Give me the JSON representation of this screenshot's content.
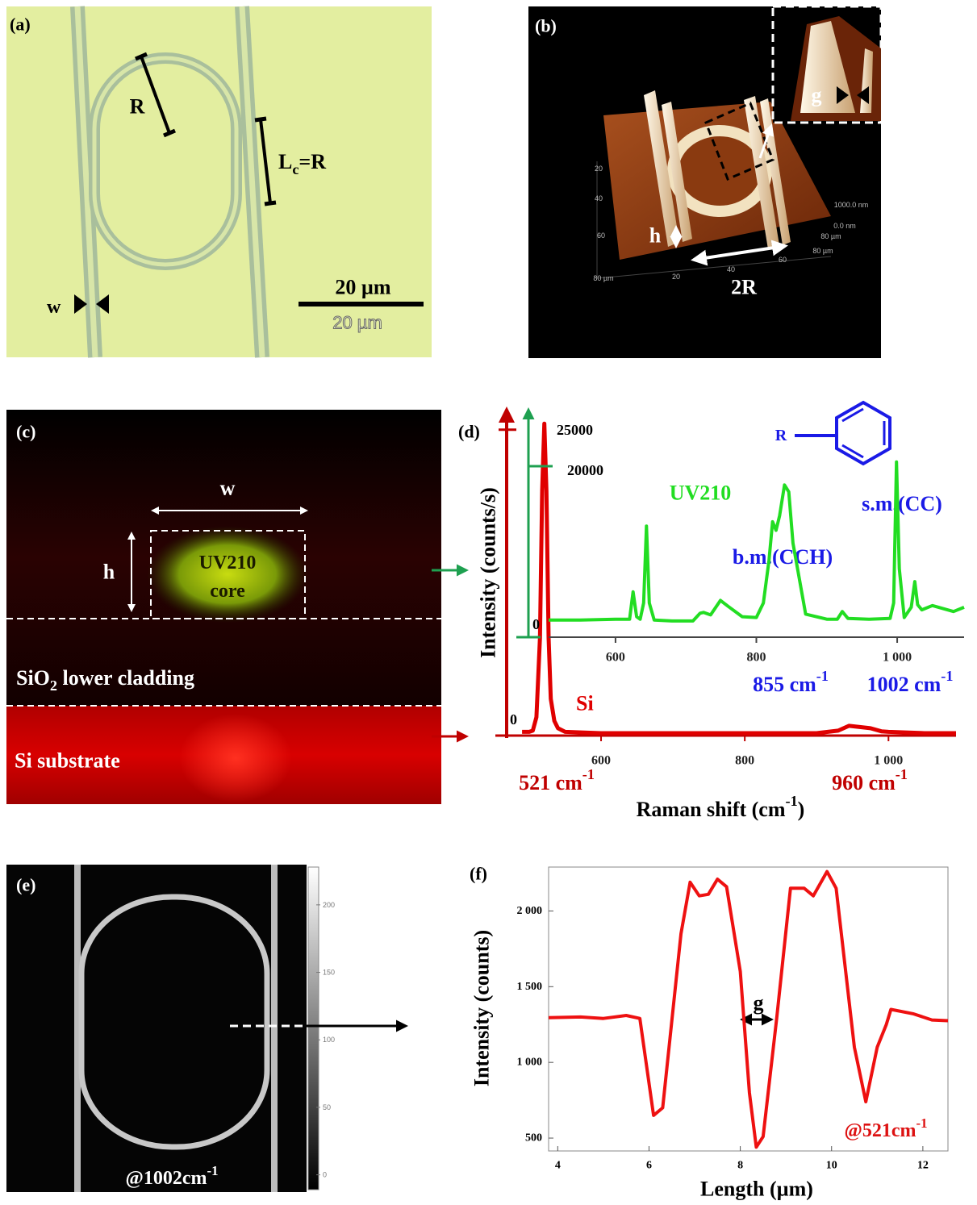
{
  "panels": {
    "a": {
      "label": "(a)",
      "radius": "R",
      "coupling": {
        "text": "L",
        "sub": "c",
        "rest": "=R"
      },
      "width": "w",
      "scale_bar": "20 µm",
      "scale_bar_image": "20 µm"
    },
    "b": {
      "label": "(b)",
      "gap": "g",
      "height": "h",
      "diameter": "2R",
      "axis_texts": [
        "20",
        "40",
        "60",
        "80 µm",
        "20",
        "40",
        "60",
        "1000.0 nm",
        "0.0 nm",
        "80 µm",
        "80 µm"
      ]
    },
    "c": {
      "label": "(c)",
      "width": "w",
      "height": "h",
      "core_name": "UV210",
      "core": "core",
      "cladding": {
        "text": "SiO",
        "sub": "2",
        "rest": " lower cladding"
      },
      "substrate": "Si substrate"
    },
    "e": {
      "label": "(e)",
      "wavenumber": {
        "text": "@1002cm",
        "sup": "-1"
      },
      "colorbar": {
        "clim": [
          -11,
          228
        ],
        "ticks": [
          0,
          50,
          100,
          150,
          200
        ]
      }
    }
  },
  "chart_data": [
    {
      "type": "line",
      "label": "(d)",
      "xlabel": {
        "text": "Raman shift (cm",
        "sup": "-1",
        "rest": ")"
      },
      "ylabel": "Intensity (counts/s)",
      "series": [
        {
          "name": "Si",
          "color": "#e00000",
          "x": [
            490,
            500,
            505,
            510,
            515,
            518,
            521,
            524,
            527,
            530,
            535,
            540,
            550,
            600,
            700,
            800,
            900,
            930,
            945,
            960,
            975,
            990,
            1000,
            1050,
            1094
          ],
          "values": [
            300,
            300,
            400,
            1500,
            8000,
            20000,
            25500,
            20000,
            8000,
            3000,
            1200,
            600,
            300,
            200,
            200,
            200,
            200,
            400,
            800,
            700,
            600,
            350,
            300,
            200,
            200
          ],
          "xlim": [
            454,
            1094
          ],
          "ylim": [
            0,
            26500
          ],
          "xticks": [
            600,
            800,
            {
              "value": 1000,
              "label": "1 000"
            }
          ],
          "yticks": [
            0,
            25000
          ]
        },
        {
          "name": "UV210",
          "color": "#22dd22",
          "x": [
            505,
            550,
            600,
            615,
            620,
            625,
            630,
            635,
            640,
            644,
            648,
            655,
            680,
            710,
            720,
            725,
            735,
            749,
            760,
            780,
            800,
            810,
            818,
            823,
            828,
            833,
            840,
            846,
            852,
            870,
            900,
            915,
            922,
            930,
            960,
            990,
            995,
            999,
            1003,
            1010,
            1020,
            1025,
            1029,
            1035,
            1050,
            1080,
            1095
          ],
          "values": [
            2000,
            2000,
            2100,
            2100,
            2100,
            5300,
            2400,
            2100,
            4000,
            13000,
            4000,
            2000,
            1900,
            1900,
            2800,
            2900,
            2600,
            4300,
            3600,
            2400,
            2300,
            4000,
            9000,
            13500,
            12500,
            14200,
            17800,
            17000,
            11000,
            2700,
            2100,
            2100,
            3000,
            2200,
            2100,
            2200,
            4000,
            20500,
            8000,
            2300,
            3500,
            6500,
            3800,
            3200,
            3700,
            3000,
            3500
          ],
          "xlim": [
            505,
            1095
          ],
          "ylim": [
            0,
            26600
          ],
          "xticks": [
            600,
            800,
            {
              "value": 1000,
              "label": "1 000"
            }
          ],
          "yticks": [
            0,
            20000
          ]
        }
      ],
      "annotations": [
        {
          "text": "b.m.(CCH)",
          "color": "#1a1ae6"
        },
        {
          "text": "s.m.(CC)",
          "color": "#1a1ae6"
        },
        {
          "text": "855 cm",
          "sup": "-1",
          "color": "#1a1ae6"
        },
        {
          "text": "1002 cm",
          "sup": "-1",
          "color": "#1a1ae6"
        },
        {
          "text": "521 cm",
          "sup": "-1",
          "color": "#c00000"
        },
        {
          "text": "960 cm",
          "sup": "-1",
          "color": "#c00000"
        },
        {
          "text": "R",
          "color": "#1a1ae6"
        }
      ]
    },
    {
      "type": "line",
      "label": "(f)",
      "xlabel": "Length (µm)",
      "ylabel": "Intensity (counts)",
      "color": "#ee1111",
      "x": [
        3.8,
        4.5,
        5,
        5.5,
        5.8,
        6.1,
        6.3,
        6.7,
        6.9,
        7.1,
        7.3,
        7.5,
        7.7,
        8,
        8.2,
        8.35,
        8.5,
        8.8,
        9.1,
        9.4,
        9.6,
        9.9,
        10.1,
        10.5,
        10.75,
        11,
        11.2,
        11.3,
        11.8,
        12.2,
        12.55
      ],
      "values": [
        1295,
        1300,
        1290,
        1310,
        1290,
        650,
        700,
        1850,
        2190,
        2100,
        2110,
        2210,
        2160,
        1600,
        800,
        440,
        510,
        1300,
        2150,
        2150,
        2100,
        2260,
        2150,
        1100,
        740,
        1100,
        1250,
        1350,
        1320,
        1280,
        1275
      ],
      "xlim": [
        3.8,
        12.55
      ],
      "ylim": [
        415,
        2290
      ],
      "xticks": [
        4,
        6,
        8,
        10,
        12
      ],
      "yticks": [
        500,
        {
          "value": 1000,
          "label": "1 000"
        },
        {
          "value": 1500,
          "label": "1 500"
        },
        {
          "value": 2000,
          "label": "2 000"
        }
      ],
      "annotations": [
        {
          "text": "g",
          "color": "#000000"
        },
        {
          "text": "@521cm",
          "sup": "-1",
          "color": "#dd1111"
        }
      ]
    }
  ]
}
